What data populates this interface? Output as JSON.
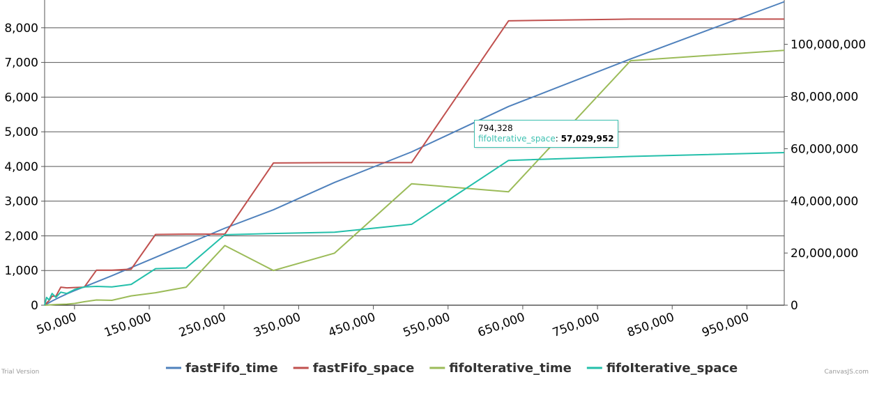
{
  "chart_data": {
    "type": "line",
    "xlim": [
      10000,
      1000000
    ],
    "y_left_lim": [
      0,
      8800
    ],
    "y_right_lim": [
      0,
      117000000
    ],
    "x_ticks": [
      "50,000",
      "150,000",
      "250,000",
      "350,000",
      "450,000",
      "550,000",
      "650,000",
      "750,000",
      "850,000",
      "950,000"
    ],
    "x_tick_values": [
      50000,
      150000,
      250000,
      350000,
      450000,
      550000,
      650000,
      750000,
      850000,
      950000
    ],
    "y_left_ticks": [
      "0",
      "1,000",
      "2,000",
      "3,000",
      "4,000",
      "5,000",
      "6,000",
      "7,000",
      "8,000"
    ],
    "y_left_tick_values": [
      0,
      1000,
      2000,
      3000,
      4000,
      5000,
      6000,
      7000,
      8000
    ],
    "y_right_ticks": [
      "0",
      "20,000,000",
      "40,000,000",
      "60,000,000",
      "80,000,000",
      "100,000,000"
    ],
    "y_right_tick_values": [
      0,
      20000000,
      40000000,
      60000000,
      80000000,
      100000000
    ],
    "grid": true,
    "legend_position": "bottom",
    "series": [
      {
        "name": "fastFifo_time",
        "axis": "left",
        "color": "#4f81bc",
        "x": [
          10000,
          20000,
          30000,
          40000,
          50000,
          63096,
          100000,
          158489,
          251189,
          316228,
          398107,
          501187,
          630957,
          794328,
          1000000
        ],
        "y": [
          0,
          120,
          230,
          330,
          420,
          530,
          850,
          1380,
          2220,
          2750,
          3540,
          4420,
          5730,
          7100,
          8750
        ]
      },
      {
        "name": "fastFifo_space",
        "axis": "left",
        "color": "#c0504e",
        "x": [
          10000,
          12589,
          15849,
          19953,
          25119,
          31623,
          39811,
          50119,
          63096,
          79433,
          100000,
          125893,
          158489,
          199526,
          251189,
          316228,
          398107,
          501187,
          630957,
          794328,
          1000000
        ],
        "y": [
          0,
          65,
          130,
          260,
          260,
          520,
          500,
          510,
          520,
          1010,
          1010,
          1040,
          2040,
          2050,
          2050,
          4100,
          4110,
          4110,
          8200,
          8250,
          8250
        ]
      },
      {
        "name": "fifoIterative_time",
        "axis": "left",
        "color": "#9bbb58",
        "x": [
          10000,
          25119,
          39811,
          50119,
          63096,
          79433,
          100000,
          125893,
          158489,
          199526,
          251189,
          316228,
          398107,
          501187,
          630957,
          794328,
          1000000
        ],
        "y": [
          0,
          20,
          30,
          50,
          100,
          150,
          140,
          270,
          360,
          520,
          1720,
          1000,
          1500,
          3500,
          3270,
          7050,
          7350
        ]
      },
      {
        "name": "fifoIterative_space",
        "axis": "right",
        "color": "#23bfaa",
        "x": [
          10000,
          12589,
          15849,
          19953,
          25119,
          31623,
          39811,
          50119,
          63096,
          79433,
          100000,
          125893,
          158489,
          199526,
          251189,
          316228,
          398107,
          501187,
          630957,
          794328,
          1000000
        ],
        "y": [
          0,
          3000000,
          2000000,
          4500000,
          3000000,
          5000000,
          4500000,
          6000000,
          7000000,
          7200000,
          7000000,
          8000000,
          14000000,
          14300000,
          27000000,
          27500000,
          28000000,
          31000000,
          55500000,
          57029952,
          58500000
        ]
      }
    ]
  },
  "tooltip": {
    "x_value": "794,328",
    "series_label": "fifoIterative_space",
    "value": "57,029,952"
  },
  "footer": {
    "left": "Trial Version",
    "right": "CanvasJS.com"
  }
}
